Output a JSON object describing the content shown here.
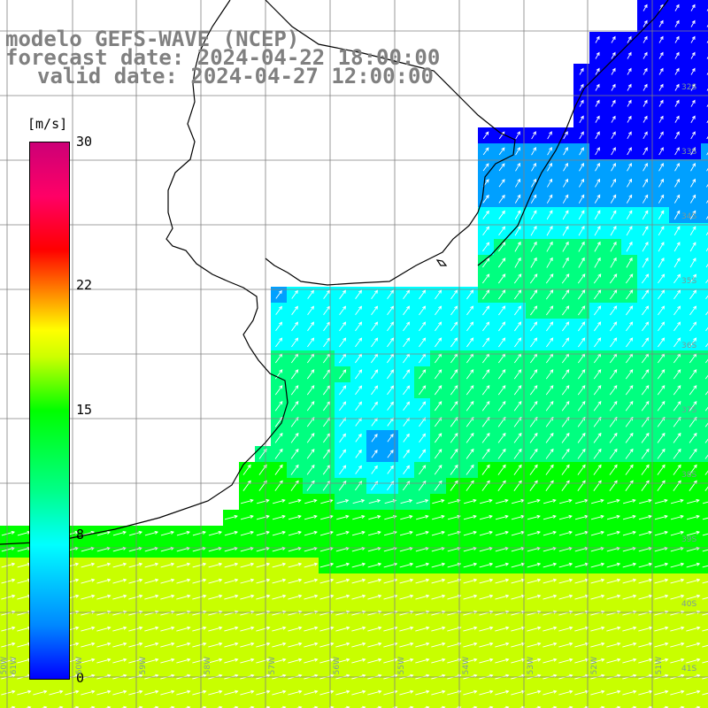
{
  "title": {
    "line1": "modelo GEFS-WAVE (NCEP)",
    "line2": "forecast date: 2024-04-22 18:00:00",
    "line3": "valid date: 2024-04-27 12:00:00"
  },
  "colorbar": {
    "unit": "[m/s]",
    "ticks": [
      {
        "label": "30",
        "value": 30
      },
      {
        "label": "22",
        "value": 22
      },
      {
        "label": "15",
        "value": 15
      },
      {
        "label": "8",
        "value": 8
      },
      {
        "label": "0",
        "value": 0
      }
    ],
    "min": 0,
    "max": 30
  },
  "map": {
    "longitude_labels": [
      "61W",
      "60W",
      "59W",
      "58W",
      "57W",
      "56W",
      "55W",
      "54W",
      "53W",
      "52W",
      "51W",
      "50W"
    ],
    "latitude_labels": [
      "32S",
      "33S",
      "34S",
      "35S",
      "36S",
      "37S",
      "38S",
      "39S",
      "40S",
      "41S"
    ],
    "ocean_color_scale": [
      "#0000ff",
      "#00a0ff",
      "#00ffff",
      "#00ff80",
      "#00ff00",
      "#c8ff00"
    ],
    "land_color": "#ffffff",
    "coast_color": "#000000",
    "grid_color": "#808080",
    "arrow_color": "#ffffff",
    "wind_arrows": "white arrows, ~1 per grid cell, direction = wind direction"
  }
}
